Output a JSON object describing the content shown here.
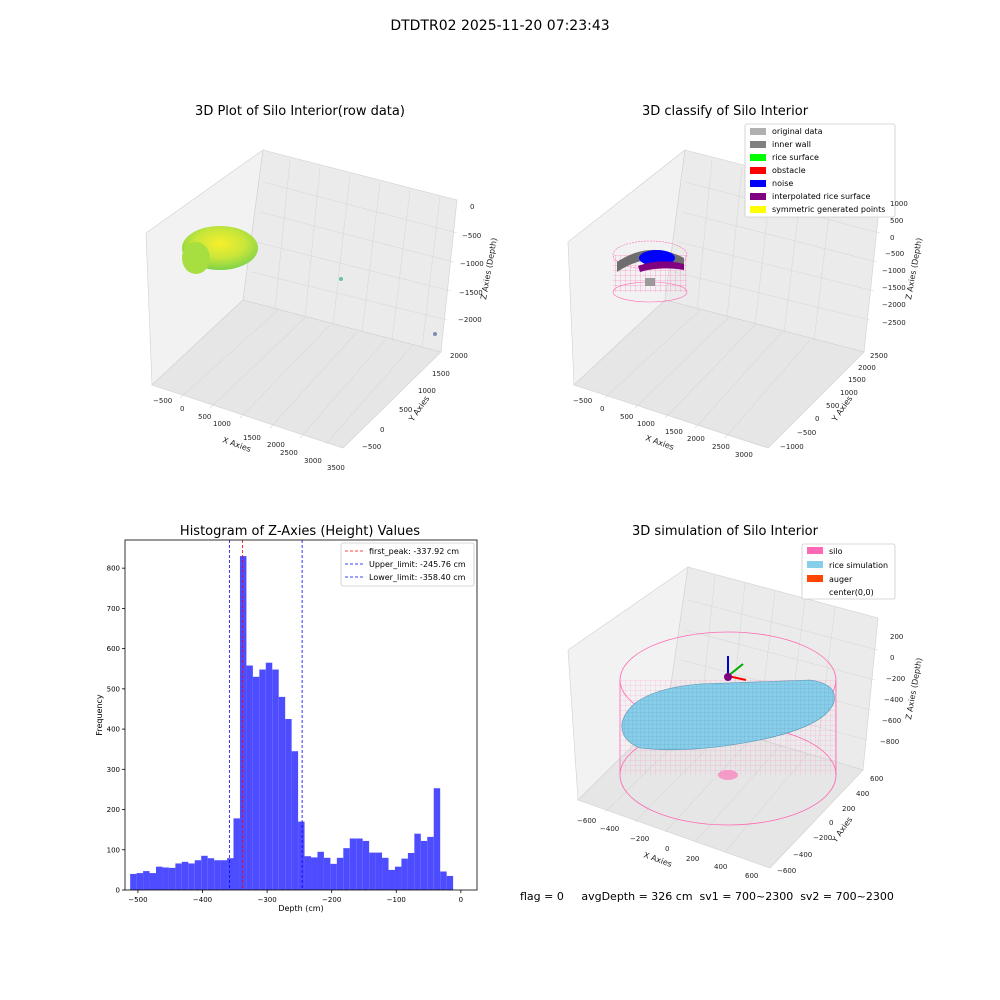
{
  "figure": {
    "suptitle": "DTDTR02 2025-11-20 07:23:43",
    "status_line": "flag = 0     avgDepth = 326 cm  sv1 = 700~2300  sv2 = 700~2300"
  },
  "colors": {
    "hist_bar": "#4d4dff",
    "first_peak_line": "#ff0000",
    "limit_line": "#0000ff",
    "silo_wire": "#ff69b4",
    "rice_simulation": "#87ceeb",
    "auger": "#ff4500"
  },
  "plots3d": {
    "raw": {
      "title": "3D Plot of Silo Interior(row data)",
      "xlabel": "X Axies",
      "ylabel": "Y Axies",
      "zlabel": "Z Axies (Depth)",
      "xticks": [
        "−500",
        "0",
        "500",
        "1000",
        "1500",
        "2000",
        "2500",
        "3000",
        "3500"
      ],
      "yticks": [
        "−500",
        "0",
        "500",
        "1000",
        "1500",
        "2000"
      ],
      "zticks": [
        "0",
        "−500",
        "−1000",
        "−1500",
        "−2000"
      ]
    },
    "classify": {
      "title": "3D classify of Silo Interior",
      "xlabel": "X Axies",
      "ylabel": "Y Axies",
      "zlabel": "Z Axies (Depth)",
      "xticks": [
        "−500",
        "0",
        "500",
        "1000",
        "1500",
        "2000",
        "2500",
        "3000"
      ],
      "yticks": [
        "−1000",
        "−500",
        "0",
        "500",
        "1000",
        "1500",
        "2000",
        "2500"
      ],
      "zticks": [
        "1000",
        "500",
        "0",
        "−500",
        "−1000",
        "−1500",
        "−2000",
        "−2500"
      ],
      "legend": [
        {
          "label": "original data",
          "color": "#b0b0b0"
        },
        {
          "label": "inner wall",
          "color": "#808080"
        },
        {
          "label": "rice surface",
          "color": "#00ff00"
        },
        {
          "label": "obstacle",
          "color": "#ff0000"
        },
        {
          "label": "noise",
          "color": "#0000ff"
        },
        {
          "label": "interpolated rice surface",
          "color": "#800080"
        },
        {
          "label": "symmetric generated points",
          "color": "#ffff00"
        }
      ]
    },
    "simulation": {
      "title": "3D simulation of Silo Interior",
      "xlabel": "X Axies",
      "ylabel": "Y Axies",
      "zlabel": "Z Axies (Depth)",
      "xticks": [
        "−600",
        "−400",
        "−200",
        "0",
        "200",
        "400",
        "600"
      ],
      "yticks": [
        "−600",
        "−400",
        "−200",
        "0",
        "200",
        "400",
        "600"
      ],
      "zticks": [
        "200",
        "0",
        "−200",
        "−400",
        "−600",
        "−800"
      ],
      "legend": [
        {
          "label": "silo",
          "color": "#ff69b4"
        },
        {
          "label": "rice simulation",
          "color": "#87ceeb"
        },
        {
          "label": "auger",
          "color": "#ff4500"
        },
        {
          "label": "center(0,0)",
          "color": "#ffffff"
        }
      ]
    }
  },
  "chart_data": {
    "type": "bar",
    "title": "Histogram of Z-Axies (Height) Values",
    "xlabel": "Depth (cm)",
    "ylabel": "Frequency",
    "xlim": [
      -520,
      25
    ],
    "ylim": [
      0,
      870
    ],
    "xticks": [
      -500,
      -400,
      -300,
      -200,
      -100,
      0
    ],
    "xtick_labels": [
      "−500",
      "−400",
      "−300",
      "−200",
      "−100",
      "0"
    ],
    "yticks": [
      0,
      100,
      200,
      300,
      400,
      500,
      600,
      700,
      800
    ],
    "bin_start": -512,
    "bin_width": 10,
    "values": [
      40,
      42,
      47,
      42,
      58,
      56,
      55,
      66,
      70,
      66,
      74,
      85,
      79,
      74,
      74,
      79,
      178,
      830,
      558,
      530,
      548,
      565,
      548,
      480,
      425,
      345,
      170,
      84,
      81,
      95,
      80,
      65,
      80,
      104,
      128,
      128,
      122,
      93,
      93,
      80,
      50,
      58,
      78,
      92,
      140,
      122,
      132,
      253,
      46,
      35
    ],
    "lines": [
      {
        "label": "first_peak: -337.92 cm",
        "x": -337.92,
        "color": "#ff0000"
      },
      {
        "label": "Upper_limit: -245.76 cm",
        "x": -245.76,
        "color": "#0000ff"
      },
      {
        "label": "Lower_limit: -358.40 cm",
        "x": -358.4,
        "color": "#0000ff"
      }
    ],
    "legend_position": "top-right",
    "grid": false
  }
}
